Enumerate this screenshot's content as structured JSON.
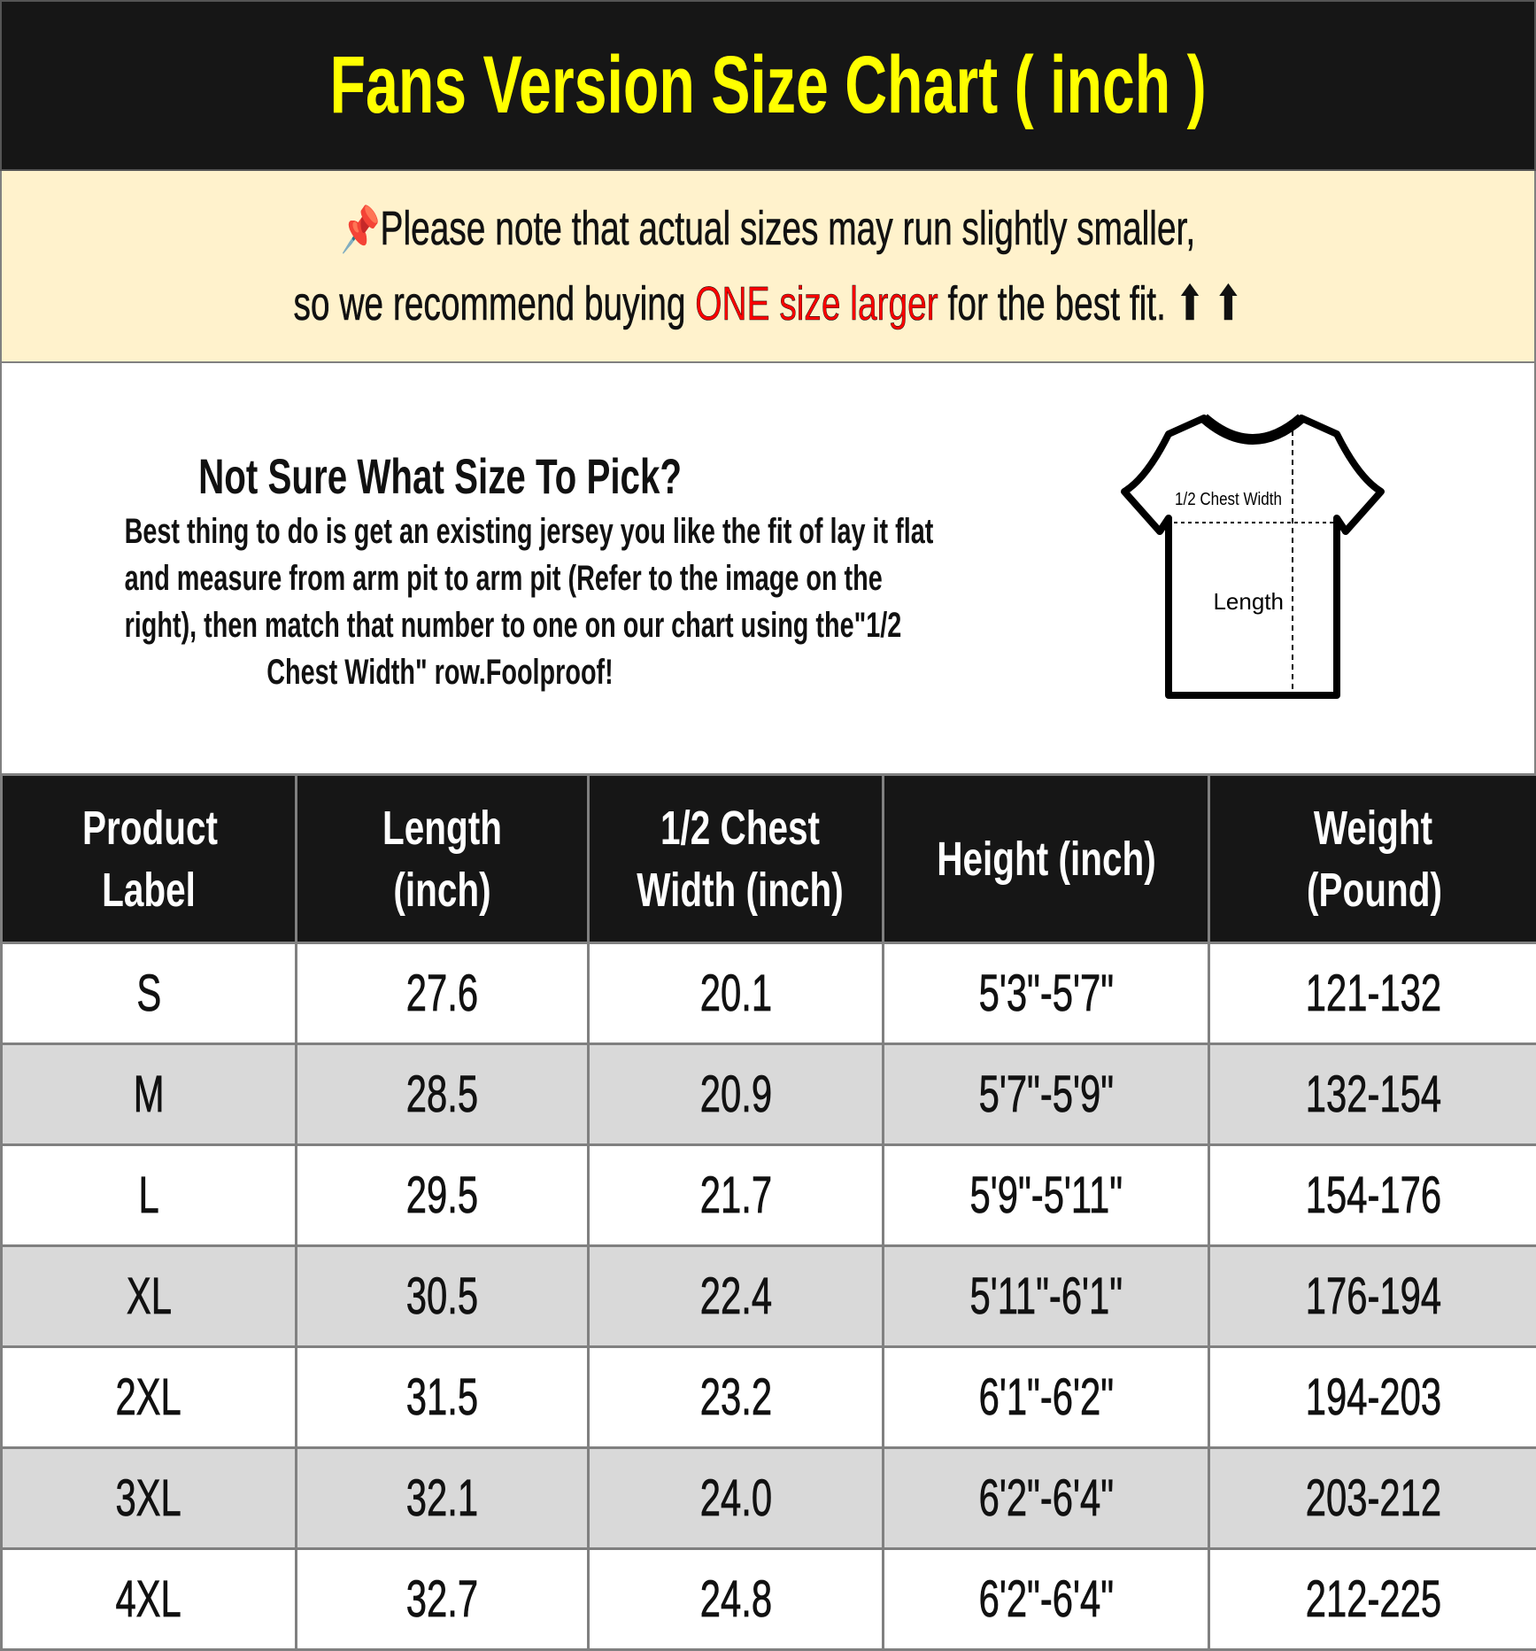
{
  "title": "Fans Version Size Chart ( inch )",
  "note": {
    "icon": "pushpin-icon",
    "line1": "Please note that actual sizes may run slightly smaller,",
    "line2_before": "so we recommend buying ",
    "line2_highlight": "ONE size larger",
    "line2_after": " for the best fit. ",
    "arrows": "⬆ ⬆",
    "highlight_color": "#ff0000"
  },
  "info": {
    "heading": "Not Sure What Size To Pick?",
    "lines": [
      "Best thing to do is get an existing jersey you like the fit of lay it flat",
      "and measure from arm pit to arm pit (Refer to the image on the",
      "right), then match that number to one on our chart using the\"1/2",
      "Chest Width\" row.Foolproof!"
    ],
    "diagram": {
      "chest_label": "1/2 Chest Width",
      "length_label": "Length"
    }
  },
  "table": {
    "headers": [
      "Product Label",
      "Length (inch)",
      "1/2 Chest Width (inch)",
      "Height (inch)",
      "Weight (Pound)"
    ],
    "rows": [
      [
        "S",
        "27.6",
        "20.1",
        "5'3\"-5'7\"",
        "121-132"
      ],
      [
        "M",
        "28.5",
        "20.9",
        "5'7\"-5'9\"",
        "132-154"
      ],
      [
        "L",
        "29.5",
        "21.7",
        "5'9\"-5'11\"",
        "154-176"
      ],
      [
        "XL",
        "30.5",
        "22.4",
        "5'11\"-6'1\"",
        "176-194"
      ],
      [
        "2XL",
        "31.5",
        "23.2",
        "6'1\"-6'2\"",
        "194-203"
      ],
      [
        "3XL",
        "32.1",
        "24.0",
        "6'2\"-6'4\"",
        "203-212"
      ],
      [
        "4XL",
        "32.7",
        "24.8",
        "6'2\"-6'4\"",
        "212-225"
      ]
    ]
  }
}
